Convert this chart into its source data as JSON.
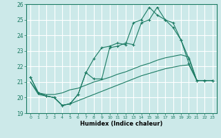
{
  "title": "",
  "xlabel": "Humidex (Indice chaleur)",
  "xlim": [
    -0.5,
    23.5
  ],
  "ylim": [
    19,
    26
  ],
  "yticks": [
    19,
    20,
    21,
    22,
    23,
    24,
    25,
    26
  ],
  "xticks": [
    0,
    1,
    2,
    3,
    4,
    5,
    6,
    7,
    8,
    9,
    10,
    11,
    12,
    13,
    14,
    15,
    16,
    17,
    18,
    19,
    20,
    21,
    22,
    23
  ],
  "bg_color": "#cce9e9",
  "grid_color": "#ffffff",
  "line_color": "#1a7a62",
  "line1_x": [
    0,
    1,
    2,
    3,
    4,
    5,
    6,
    7,
    8,
    9,
    10,
    11,
    12,
    13,
    14,
    15,
    16,
    17,
    18,
    19,
    20,
    21,
    22,
    23
  ],
  "line1_y": [
    21.3,
    20.3,
    20.1,
    20.0,
    19.5,
    19.6,
    20.2,
    21.6,
    21.2,
    21.2,
    23.2,
    23.3,
    23.5,
    23.4,
    24.8,
    25.0,
    25.8,
    25.0,
    24.8,
    23.7,
    22.2,
    21.1,
    21.1,
    21.1
  ],
  "line2_x": [
    0,
    1,
    2,
    3,
    4,
    5,
    6,
    7,
    8,
    9,
    10,
    11,
    12,
    13,
    14,
    15,
    16,
    17,
    18,
    19,
    20,
    21,
    22,
    23
  ],
  "line2_y": [
    21.3,
    20.3,
    20.1,
    20.0,
    19.5,
    19.6,
    20.2,
    21.6,
    22.5,
    23.2,
    23.3,
    23.5,
    23.4,
    24.8,
    25.0,
    25.8,
    25.3,
    25.0,
    24.5,
    23.7,
    22.5,
    21.1,
    21.1,
    21.1
  ],
  "line3_x": [
    0,
    1,
    2,
    3,
    4,
    5,
    6,
    7,
    8,
    9,
    10,
    11,
    12,
    13,
    14,
    15,
    16,
    17,
    18,
    19,
    20,
    21,
    22,
    23
  ],
  "line3_y": [
    21.0,
    20.3,
    20.2,
    20.2,
    20.3,
    20.5,
    20.6,
    20.8,
    21.0,
    21.15,
    21.3,
    21.5,
    21.65,
    21.85,
    22.05,
    22.2,
    22.4,
    22.55,
    22.65,
    22.75,
    22.6,
    21.1,
    21.1,
    21.1
  ],
  "line4_x": [
    0,
    1,
    2,
    3,
    4,
    5,
    6,
    7,
    8,
    9,
    10,
    11,
    12,
    13,
    14,
    15,
    16,
    17,
    18,
    19,
    20,
    21,
    22,
    23
  ],
  "line4_y": [
    21.0,
    20.2,
    20.1,
    20.0,
    19.5,
    19.6,
    19.8,
    20.0,
    20.2,
    20.4,
    20.6,
    20.8,
    21.0,
    21.2,
    21.4,
    21.55,
    21.7,
    21.85,
    21.95,
    22.05,
    22.1,
    21.1,
    21.1,
    21.1
  ]
}
